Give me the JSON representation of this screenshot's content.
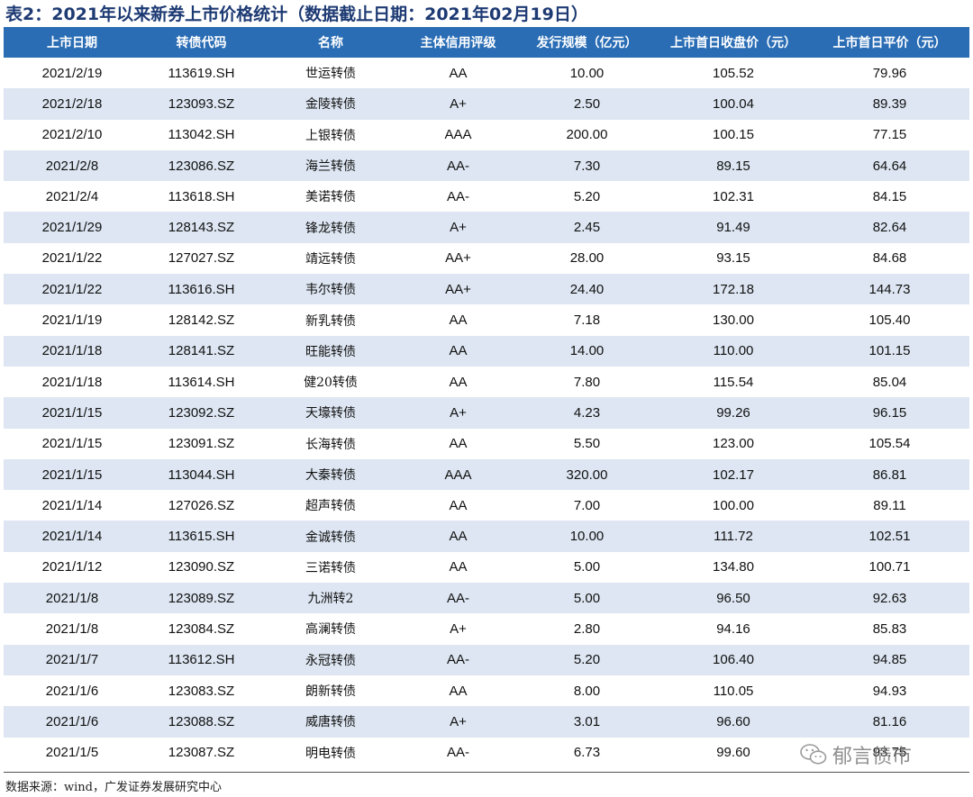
{
  "title": "表2：2021年以来新券上市价格统计（数据截止日期：2021年02月19日）",
  "columns": [
    "上市日期",
    "转债代码",
    "名称",
    "主体信用评级",
    "发行规模（亿元）",
    "上市首日收盘价（元）",
    "上市首日平价（元）"
  ],
  "rows": [
    [
      "2021/2/19",
      "113619.SH",
      "世运转债",
      "AA",
      "10.00",
      "105.52",
      "79.96"
    ],
    [
      "2021/2/18",
      "123093.SZ",
      "金陵转债",
      "A+",
      "2.50",
      "100.04",
      "89.39"
    ],
    [
      "2021/2/10",
      "113042.SH",
      "上银转债",
      "AAA",
      "200.00",
      "100.15",
      "77.15"
    ],
    [
      "2021/2/8",
      "123086.SZ",
      "海兰转债",
      "AA-",
      "7.30",
      "89.15",
      "64.64"
    ],
    [
      "2021/2/4",
      "113618.SH",
      "美诺转债",
      "AA-",
      "5.20",
      "102.31",
      "84.15"
    ],
    [
      "2021/1/29",
      "128143.SZ",
      "锋龙转债",
      "A+",
      "2.45",
      "91.49",
      "82.64"
    ],
    [
      "2021/1/22",
      "127027.SZ",
      "靖远转债",
      "AA+",
      "28.00",
      "93.15",
      "84.68"
    ],
    [
      "2021/1/22",
      "113616.SH",
      "韦尔转债",
      "AA+",
      "24.40",
      "172.18",
      "144.73"
    ],
    [
      "2021/1/19",
      "128142.SZ",
      "新乳转债",
      "AA",
      "7.18",
      "130.00",
      "105.40"
    ],
    [
      "2021/1/18",
      "128141.SZ",
      "旺能转债",
      "AA",
      "14.00",
      "110.00",
      "101.15"
    ],
    [
      "2021/1/18",
      "113614.SH",
      "健20转债",
      "AA",
      "7.80",
      "115.54",
      "85.04"
    ],
    [
      "2021/1/15",
      "123092.SZ",
      "天壕转债",
      "A+",
      "4.23",
      "99.26",
      "96.15"
    ],
    [
      "2021/1/15",
      "123091.SZ",
      "长海转债",
      "AA",
      "5.50",
      "123.00",
      "105.54"
    ],
    [
      "2021/1/15",
      "113044.SH",
      "大秦转债",
      "AAA",
      "320.00",
      "102.17",
      "86.81"
    ],
    [
      "2021/1/14",
      "127026.SZ",
      "超声转债",
      "AA",
      "7.00",
      "100.00",
      "89.11"
    ],
    [
      "2021/1/14",
      "113615.SH",
      "金诚转债",
      "AA",
      "10.00",
      "111.72",
      "102.51"
    ],
    [
      "2021/1/12",
      "123090.SZ",
      "三诺转债",
      "AA",
      "5.00",
      "134.80",
      "100.71"
    ],
    [
      "2021/1/8",
      "123089.SZ",
      "九洲转2",
      "AA-",
      "5.00",
      "96.50",
      "92.63"
    ],
    [
      "2021/1/8",
      "123084.SZ",
      "高澜转债",
      "A+",
      "2.80",
      "94.16",
      "85.83"
    ],
    [
      "2021/1/7",
      "113612.SH",
      "永冠转债",
      "AA-",
      "5.20",
      "106.40",
      "94.85"
    ],
    [
      "2021/1/6",
      "123083.SZ",
      "朗新转债",
      "AA",
      "8.00",
      "110.05",
      "94.93"
    ],
    [
      "2021/1/6",
      "123088.SZ",
      "威唐转债",
      "A+",
      "3.01",
      "96.60",
      "81.16"
    ],
    [
      "2021/1/5",
      "123087.SZ",
      "明电转债",
      "AA-",
      "6.73",
      "99.60",
      "93.75"
    ]
  ],
  "source": "数据来源：wind，广发证券发展研究中心",
  "watermark": {
    "text": "郁言债市",
    "icon": "wechat-icon"
  }
}
